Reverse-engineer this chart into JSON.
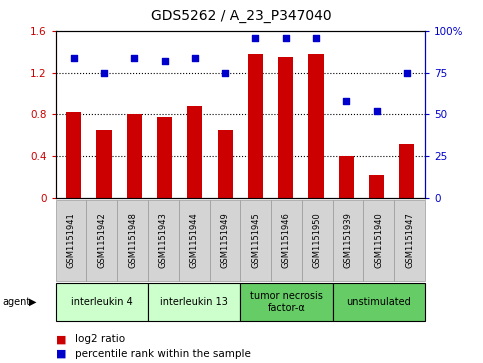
{
  "title": "GDS5262 / A_23_P347040",
  "samples": [
    "GSM1151941",
    "GSM1151942",
    "GSM1151948",
    "GSM1151943",
    "GSM1151944",
    "GSM1151949",
    "GSM1151945",
    "GSM1151946",
    "GSM1151950",
    "GSM1151939",
    "GSM1151940",
    "GSM1151947"
  ],
  "log2_ratio": [
    0.82,
    0.65,
    0.8,
    0.77,
    0.88,
    0.65,
    1.38,
    1.35,
    1.38,
    0.4,
    0.22,
    0.52
  ],
  "percentile": [
    84,
    75,
    84,
    82,
    84,
    75,
    96,
    96,
    96,
    58,
    52,
    75
  ],
  "bar_color": "#cc0000",
  "dot_color": "#0000cc",
  "ylim_left": [
    0,
    1.6
  ],
  "ylim_right": [
    0,
    100
  ],
  "yticks_left": [
    0,
    0.4,
    0.8,
    1.2,
    1.6
  ],
  "ytick_labels_left": [
    "0",
    "0.4",
    "0.8",
    "1.2",
    "1.6"
  ],
  "yticks_right": [
    0,
    25,
    50,
    75,
    100
  ],
  "ytick_labels_right": [
    "0",
    "25",
    "50",
    "75",
    "100%"
  ],
  "hlines": [
    0.4,
    0.8,
    1.2
  ],
  "agent_groups": [
    {
      "label": "interleukin 4",
      "start": 0,
      "end": 3,
      "color": "#ccffcc"
    },
    {
      "label": "interleukin 13",
      "start": 3,
      "end": 6,
      "color": "#ccffcc"
    },
    {
      "label": "tumor necrosis\nfactor-α",
      "start": 6,
      "end": 9,
      "color": "#66cc66"
    },
    {
      "label": "unstimulated",
      "start": 9,
      "end": 12,
      "color": "#66cc66"
    }
  ],
  "legend_items": [
    {
      "color": "#cc0000",
      "label": "log2 ratio"
    },
    {
      "color": "#0000cc",
      "label": "percentile rank within the sample"
    }
  ],
  "bar_width": 0.5,
  "hline_style": ":",
  "hline_color": "black",
  "cell_color": "#d4d4d4",
  "cell_edge_color": "#999999",
  "tick_label_color_left": "#cc0000",
  "tick_label_color_right": "#0000cc",
  "title_fontsize": 10,
  "axis_fontsize": 7.5,
  "sample_fontsize": 6,
  "agent_fontsize": 7,
  "legend_fontsize": 7.5
}
